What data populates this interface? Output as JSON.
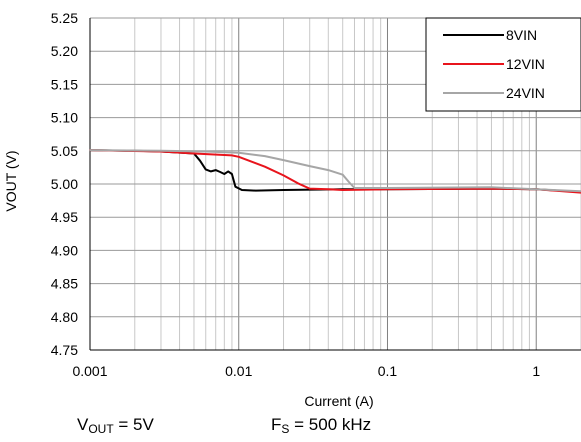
{
  "chart_data": {
    "type": "line",
    "xlabel": "Current (A)",
    "ylabel": "VOUT (V)",
    "xscale": "log",
    "xlim": [
      0.001,
      2
    ],
    "ylim": [
      4.75,
      5.25
    ],
    "x_ticks": [
      0.001,
      0.01,
      0.1,
      1
    ],
    "x_tick_labels": [
      "0.001",
      "0.01",
      "0.1",
      "1"
    ],
    "y_ticks": [
      4.75,
      4.8,
      4.85,
      4.9,
      4.95,
      5.0,
      5.05,
      5.1,
      5.15,
      5.2,
      5.25
    ],
    "y_tick_labels": [
      "4.75",
      "4.80",
      "4.85",
      "4.90",
      "4.95",
      "5.00",
      "5.05",
      "5.10",
      "5.15",
      "5.20",
      "5.25"
    ],
    "grid": true,
    "legend_position": "top-right",
    "series": [
      {
        "name": "8VIN",
        "color": "#000000",
        "points": [
          [
            0.001,
            5.051
          ],
          [
            0.002,
            5.05
          ],
          [
            0.003,
            5.049
          ],
          [
            0.005,
            5.046
          ],
          [
            0.0055,
            5.035
          ],
          [
            0.006,
            5.022
          ],
          [
            0.0065,
            5.019
          ],
          [
            0.007,
            5.021
          ],
          [
            0.0075,
            5.018
          ],
          [
            0.008,
            5.015
          ],
          [
            0.0085,
            5.019
          ],
          [
            0.009,
            5.015
          ],
          [
            0.0095,
            4.996
          ],
          [
            0.0105,
            4.991
          ],
          [
            0.013,
            4.99
          ],
          [
            0.02,
            4.991
          ],
          [
            0.05,
            4.992
          ],
          [
            0.1,
            4.992
          ],
          [
            0.5,
            4.993
          ],
          [
            1,
            4.992
          ],
          [
            2,
            4.988
          ]
        ]
      },
      {
        "name": "12VIN",
        "color": "#e8141c",
        "points": [
          [
            0.001,
            5.051
          ],
          [
            0.003,
            5.049
          ],
          [
            0.005,
            5.046
          ],
          [
            0.009,
            5.043
          ],
          [
            0.01,
            5.041
          ],
          [
            0.015,
            5.026
          ],
          [
            0.02,
            5.013
          ],
          [
            0.025,
            5.001
          ],
          [
            0.03,
            4.993
          ],
          [
            0.04,
            4.992
          ],
          [
            0.05,
            4.991
          ],
          [
            0.1,
            4.992
          ],
          [
            0.5,
            4.993
          ],
          [
            1,
            4.992
          ],
          [
            2,
            4.987
          ]
        ]
      },
      {
        "name": "24VIN",
        "color": "#a6a6a6",
        "points": [
          [
            0.001,
            5.051
          ],
          [
            0.003,
            5.05
          ],
          [
            0.006,
            5.049
          ],
          [
            0.01,
            5.047
          ],
          [
            0.015,
            5.042
          ],
          [
            0.02,
            5.036
          ],
          [
            0.03,
            5.027
          ],
          [
            0.04,
            5.021
          ],
          [
            0.05,
            5.014
          ],
          [
            0.055,
            5.003
          ],
          [
            0.06,
            4.994
          ],
          [
            0.08,
            4.994
          ],
          [
            0.1,
            4.994
          ],
          [
            0.5,
            4.995
          ],
          [
            1,
            4.992
          ],
          [
            2,
            4.989
          ]
        ]
      }
    ]
  },
  "footnote": {
    "vout_symbol": "V",
    "vout_sub": "OUT",
    "vout_value": " = 5V",
    "fs_symbol": "F",
    "fs_sub": "S",
    "fs_value": " = 500 kHz"
  }
}
